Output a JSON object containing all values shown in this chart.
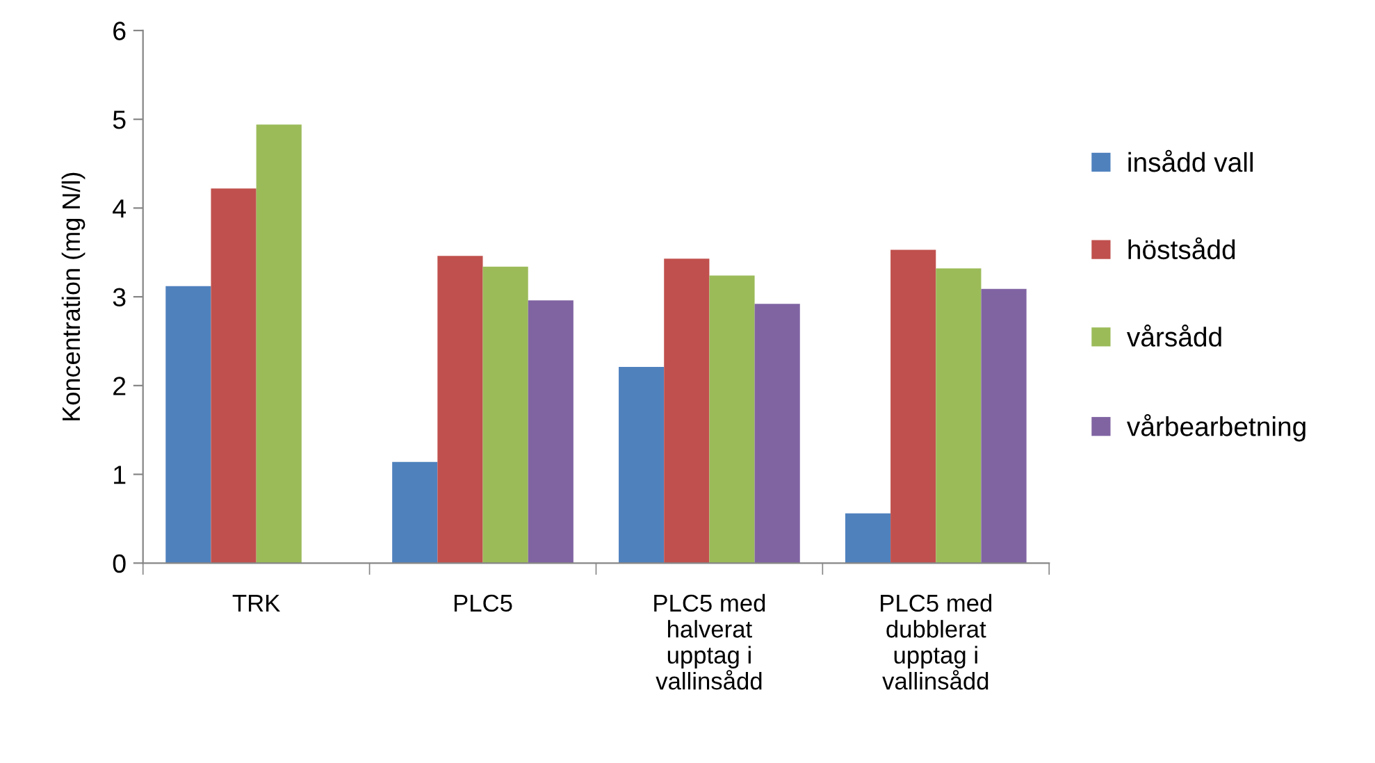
{
  "chart_data": {
    "type": "bar",
    "ylabel": "Koncentration (mg N/l)",
    "categories": [
      "TRK",
      "PLC5",
      "PLC5 med\nhalverat\nupptag i\nvallinsådd",
      "PLC5 med\ndubblerat\nupptag i\nvallinsådd"
    ],
    "series": [
      {
        "name": "insådd vall",
        "color": "#4f81bd",
        "values": [
          3.12,
          1.14,
          2.21,
          0.56
        ]
      },
      {
        "name": "höstsådd",
        "color": "#c0504d",
        "values": [
          4.22,
          3.46,
          3.43,
          3.53
        ]
      },
      {
        "name": "vårsådd",
        "color": "#9bbb59",
        "values": [
          4.94,
          3.34,
          3.24,
          3.32
        ]
      },
      {
        "name": "vårbearbetning",
        "color": "#8064a2",
        "values": [
          null,
          2.96,
          2.92,
          3.09
        ]
      }
    ],
    "ylim": [
      0,
      6
    ],
    "yticks": [
      0,
      1,
      2,
      3,
      4,
      5,
      6
    ],
    "grid": false,
    "legend": "right"
  }
}
